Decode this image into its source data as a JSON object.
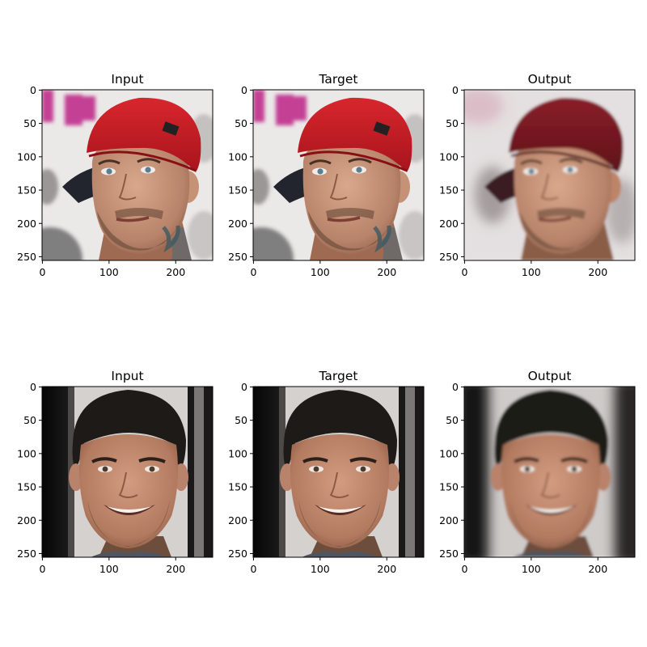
{
  "figure": {
    "panels": [
      {
        "title": "Input",
        "row": 0,
        "col": 0,
        "subject": "man-red-cap",
        "variant": "input"
      },
      {
        "title": "Target",
        "row": 0,
        "col": 1,
        "subject": "man-red-cap",
        "variant": "target"
      },
      {
        "title": "Output",
        "row": 0,
        "col": 2,
        "subject": "man-red-cap",
        "variant": "output"
      },
      {
        "title": "Input",
        "row": 1,
        "col": 0,
        "subject": "smiling-man",
        "variant": "input"
      },
      {
        "title": "Target",
        "row": 1,
        "col": 1,
        "subject": "smiling-man",
        "variant": "target"
      },
      {
        "title": "Output",
        "row": 1,
        "col": 2,
        "subject": "smiling-man",
        "variant": "output"
      }
    ],
    "x_ticks": [
      "0",
      "100",
      "200"
    ],
    "x_tick_values": [
      0,
      100,
      200
    ],
    "y_ticks": [
      "0",
      "50",
      "100",
      "150",
      "200",
      "250"
    ],
    "y_tick_values": [
      0,
      50,
      100,
      150,
      200,
      250
    ],
    "image_extent": [
      0,
      256
    ],
    "colors": {
      "cap_red": "#cc1f26",
      "cap_red_output": "#7e1a24",
      "skin": "#c69277",
      "skin_output": "#bd8468",
      "hair_dark": "#1e1a18",
      "beard": "#6b4d3a",
      "background_light": "#e6e4e4",
      "background_dark": "#0b0b0b"
    }
  }
}
